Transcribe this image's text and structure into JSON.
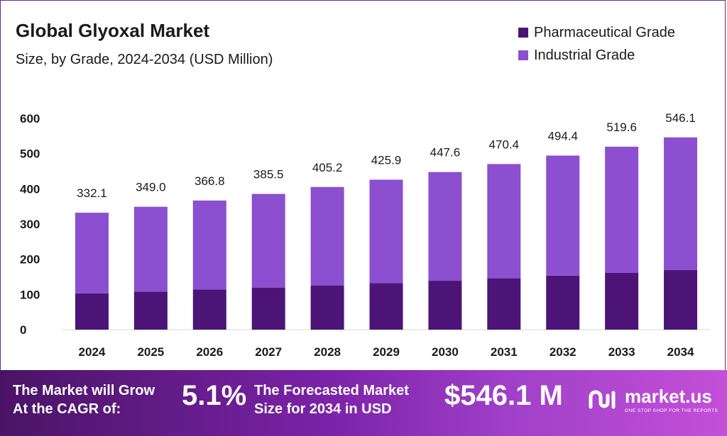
{
  "chart_data": {
    "type": "bar",
    "stacked": true,
    "title": "Global Glyoxal Market",
    "subtitle": "Size, by Grade, 2024-2034 (USD Million)",
    "categories": [
      "2024",
      "2025",
      "2026",
      "2027",
      "2028",
      "2029",
      "2030",
      "2031",
      "2032",
      "2033",
      "2034"
    ],
    "series": [
      {
        "name": "Pharmaceutical Grade",
        "color": "#4c1477",
        "values": [
          103.0,
          108.2,
          113.7,
          119.5,
          125.6,
          132.0,
          138.8,
          145.8,
          153.3,
          161.1,
          169.3
        ]
      },
      {
        "name": "Industrial Grade",
        "color": "#8b4fd0",
        "values": [
          229.1,
          240.8,
          253.1,
          266.0,
          279.6,
          293.9,
          308.8,
          324.6,
          341.1,
          358.5,
          376.8
        ]
      }
    ],
    "totals": [
      "332.1",
      "349.0",
      "366.8",
      "385.5",
      "405.2",
      "425.9",
      "447.6",
      "470.4",
      "494.4",
      "519.6",
      "546.1"
    ],
    "yticks": [
      "0",
      "100",
      "200",
      "300",
      "400",
      "500",
      "600"
    ],
    "ylim": [
      0,
      600
    ],
    "grid": false,
    "legend_position": "top-right"
  },
  "banner": {
    "cagr_text": "The Market will Grow\nAt the CAGR of:",
    "cagr_value": "5.1%",
    "forecast_text": "The Forecasted Market\nSize for 2034 in USD",
    "forecast_value": "$546.1 M",
    "brand_name": "market.us",
    "brand_tagline": "ONE STOP SHOP FOR THE REPORTS",
    "brand_icon": "market-us-logo-icon"
  }
}
